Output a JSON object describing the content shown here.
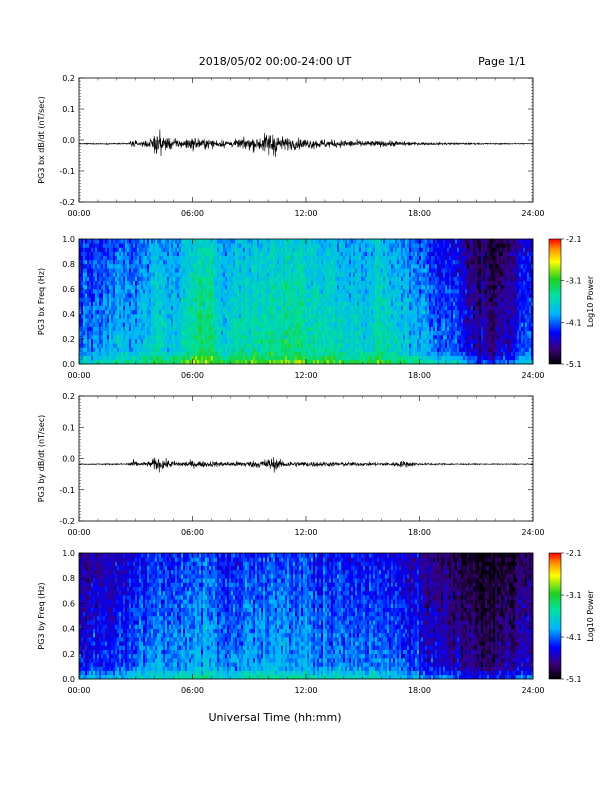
{
  "header": {
    "title": "2018/05/02  00:00-24:00 UT",
    "page": "Page 1/1"
  },
  "footer": {
    "xlabel": "Universal Time (hh:mm)"
  },
  "chart_data": [
    {
      "type": "line",
      "ylabel": "PG3 bx dB/dt (nT/sec)",
      "xlim": [
        0,
        24
      ],
      "ylim": [
        -0.2,
        0.2
      ],
      "x_ticks": [
        "00:00",
        "06:00",
        "12:00",
        "18:00",
        "24:00"
      ],
      "y_ticks": [
        "0.2",
        "0.1",
        "0.0",
        "-0.1",
        "-0.2"
      ],
      "series": [
        {
          "baseline": -0.012,
          "x": [
            0,
            2,
            2.6,
            2.8,
            3.2,
            3.8,
            4.0,
            4.2,
            4.6,
            5.2,
            6.0,
            6.6,
            7.4,
            8.2,
            9.0,
            9.6,
            10.0,
            10.3,
            10.6,
            11.0,
            11.6,
            12.5,
            13.5,
            14.5,
            15.5,
            16.5,
            17.2,
            18.0,
            20.0,
            22.0,
            24.0
          ],
          "amplitude": [
            0.002,
            0.003,
            0.004,
            0.018,
            0.008,
            0.022,
            0.045,
            0.055,
            0.032,
            0.02,
            0.028,
            0.022,
            0.018,
            0.016,
            0.03,
            0.032,
            0.055,
            0.062,
            0.036,
            0.028,
            0.024,
            0.022,
            0.018,
            0.016,
            0.014,
            0.013,
            0.01,
            0.006,
            0.004,
            0.003,
            0.002
          ]
        }
      ]
    },
    {
      "type": "heatmap",
      "ylabel": "PG3 bx Freq (Hz)",
      "xlim": [
        0,
        24
      ],
      "ylim": [
        0,
        1.0
      ],
      "x_ticks": [
        "00:00",
        "06:00",
        "12:00",
        "18:00",
        "24:00"
      ],
      "y_ticks": [
        "1.0",
        "0.8",
        "0.6",
        "0.4",
        "0.2",
        "0.0"
      ],
      "colorbar": {
        "label": "Log10 Power",
        "ticks": [
          "-2.1",
          "-3.1",
          "-4.1",
          "-5.1"
        ],
        "range": [
          -5.1,
          -2.1
        ]
      },
      "activity_profile": {
        "x": [
          0,
          1.0,
          2.5,
          3.2,
          3.8,
          4.2,
          4.8,
          5.4,
          6.0,
          6.8,
          7.5,
          8.5,
          9.5,
          10.2,
          11.0,
          12.0,
          13.0,
          14.0,
          15.0,
          16.0,
          17.0,
          18.0,
          19.0,
          20.0,
          21.0,
          22.0,
          23.0,
          24.0
        ],
        "level": [
          -3.95,
          -3.9,
          -3.8,
          -3.7,
          -3.6,
          -3.5,
          -3.65,
          -3.55,
          -3.3,
          -3.2,
          -3.6,
          -3.5,
          -3.4,
          -3.3,
          -3.35,
          -3.4,
          -3.45,
          -3.5,
          -3.55,
          -3.45,
          -3.6,
          -3.8,
          -4.0,
          -4.2,
          -4.5,
          -4.6,
          -4.3,
          -4.0
        ]
      }
    },
    {
      "type": "line",
      "ylabel": "PG3 by dB/dt (nT/sec)",
      "xlim": [
        0,
        24
      ],
      "ylim": [
        -0.2,
        0.2
      ],
      "x_ticks": [
        "00:00",
        "06:00",
        "12:00",
        "18:00",
        "24:00"
      ],
      "y_ticks": [
        "0.2",
        "0.1",
        "0.0",
        "-0.1",
        "-0.2"
      ],
      "series": [
        {
          "baseline": -0.018,
          "x": [
            0,
            2,
            2.6,
            2.8,
            3.2,
            3.8,
            4.0,
            4.2,
            4.6,
            5.2,
            6.0,
            6.6,
            7.4,
            8.2,
            9.0,
            9.6,
            10.0,
            10.3,
            10.6,
            11.0,
            11.6,
            12.5,
            13.5,
            14.5,
            15.5,
            16.5,
            17.2,
            18.0,
            20.0,
            22.0,
            24.0
          ],
          "amplitude": [
            0.002,
            0.003,
            0.004,
            0.022,
            0.006,
            0.014,
            0.03,
            0.032,
            0.02,
            0.012,
            0.016,
            0.014,
            0.012,
            0.012,
            0.014,
            0.018,
            0.026,
            0.032,
            0.018,
            0.014,
            0.012,
            0.012,
            0.01,
            0.009,
            0.008,
            0.008,
            0.016,
            0.004,
            0.003,
            0.002,
            0.002
          ]
        }
      ]
    },
    {
      "type": "heatmap",
      "ylabel": "PG3 by Freq (Hz)",
      "xlim": [
        0,
        24
      ],
      "ylim": [
        0,
        1.0
      ],
      "x_ticks": [
        "00:00",
        "06:00",
        "12:00",
        "18:00",
        "24:00"
      ],
      "y_ticks": [
        "1.0",
        "0.8",
        "0.6",
        "0.4",
        "0.2",
        "0.0"
      ],
      "colorbar": {
        "label": "Log10 Power",
        "ticks": [
          "-2.1",
          "-3.1",
          "-4.1",
          "-5.1"
        ],
        "range": [
          -5.1,
          -2.1
        ]
      },
      "activity_profile": {
        "x": [
          0,
          1.0,
          2.5,
          3.2,
          3.8,
          4.2,
          4.8,
          5.4,
          6.0,
          6.8,
          7.5,
          8.5,
          9.5,
          10.2,
          11.0,
          12.0,
          13.0,
          14.0,
          15.0,
          16.0,
          17.0,
          18.0,
          19.0,
          20.0,
          21.0,
          22.0,
          23.0,
          24.0
        ],
        "level": [
          -4.3,
          -4.25,
          -4.15,
          -4.05,
          -3.95,
          -3.9,
          -4.0,
          -3.95,
          -3.8,
          -3.75,
          -4.0,
          -3.95,
          -3.85,
          -3.8,
          -3.85,
          -3.9,
          -3.95,
          -4.0,
          -4.05,
          -4.0,
          -4.15,
          -4.3,
          -4.45,
          -4.55,
          -4.7,
          -4.75,
          -4.55,
          -4.4
        ]
      }
    }
  ]
}
